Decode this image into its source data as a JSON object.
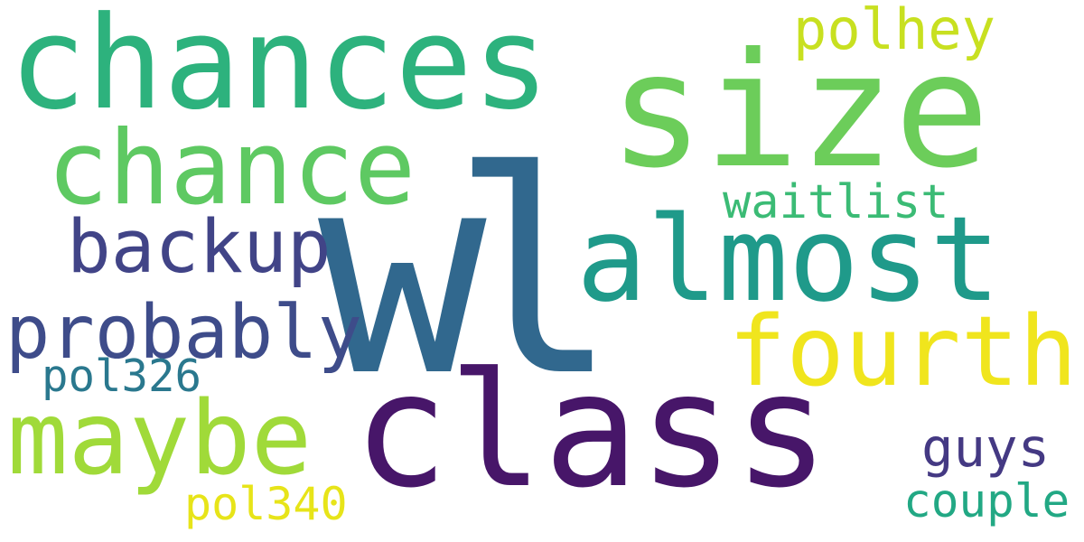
{
  "background": "#ffffff",
  "words": [
    {
      "text": "wl",
      "color": "#31688e"
    },
    {
      "text": "size",
      "color": "#6ccd5a"
    },
    {
      "text": "class",
      "color": "#471669"
    },
    {
      "text": "chances",
      "color": "#2db27d"
    },
    {
      "text": "almost",
      "color": "#1f9a8a"
    },
    {
      "text": "chance",
      "color": "#5ec962"
    },
    {
      "text": "maybe",
      "color": "#a0da39"
    },
    {
      "text": "fourth",
      "color": "#f0e51d"
    },
    {
      "text": "probably",
      "color": "#3e4c8a"
    },
    {
      "text": "backup",
      "color": "#414487"
    },
    {
      "text": "polhey",
      "color": "#c8e020"
    },
    {
      "text": "waitlist",
      "color": "#3bbb75"
    },
    {
      "text": "guys",
      "color": "#443983"
    },
    {
      "text": "pol326",
      "color": "#2a788e"
    },
    {
      "text": "couple",
      "color": "#22a884"
    },
    {
      "text": "pol340",
      "color": "#e7e419"
    }
  ]
}
